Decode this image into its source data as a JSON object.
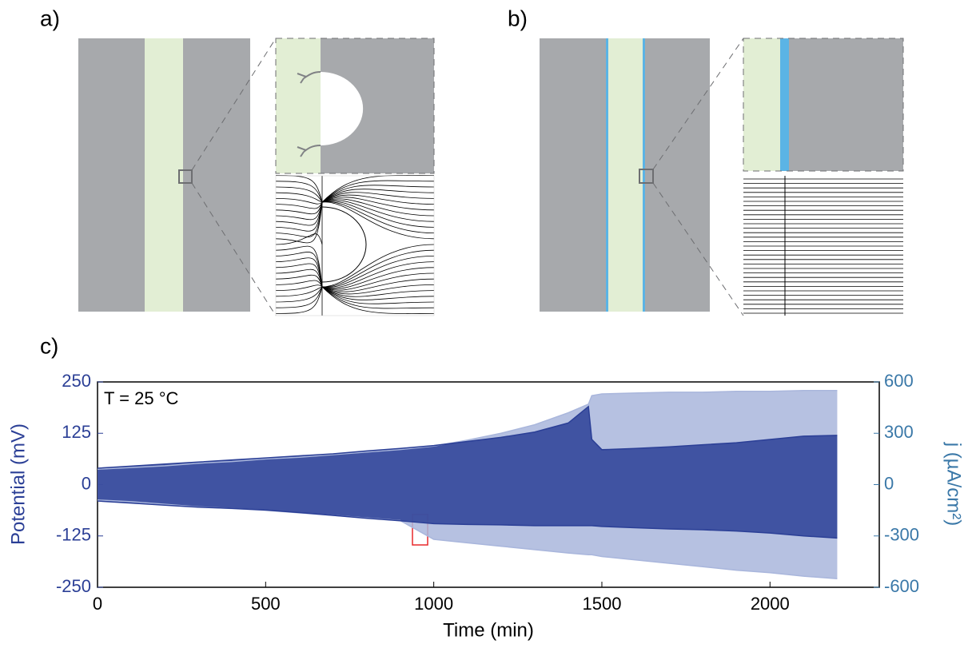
{
  "panels": {
    "a": "a)",
    "b": "b)",
    "c": "c)"
  },
  "chart_data": {
    "type": "band-line",
    "x_label": "Time (min)",
    "y_label": "Potential (mV)",
    "y2_label": "j (µA/cm²)",
    "annotation": "T = 25 °C",
    "xlim": [
      0,
      2325
    ],
    "xticks": [
      0,
      500,
      1000,
      1500,
      2000
    ],
    "ylim": [
      -250,
      250
    ],
    "yticks": [
      250,
      125,
      0,
      -125,
      -250
    ],
    "y2lim": [
      -600,
      600
    ],
    "y2ticks": [
      600,
      300,
      0,
      -300,
      -600
    ],
    "x": [
      0,
      100,
      200,
      300,
      400,
      500,
      600,
      700,
      800,
      900,
      1000,
      1100,
      1200,
      1300,
      1400,
      1460,
      1470,
      1500,
      1600,
      1700,
      1800,
      1900,
      2000,
      2100,
      2200
    ],
    "series": [
      {
        "color": "#a9b6dc",
        "axis": "y2",
        "values": [
          90,
          100,
          110,
          125,
          135,
          150,
          160,
          175,
          190,
          205,
          225,
          260,
          300,
          350,
          420,
          470,
          520,
          530,
          535,
          540,
          540,
          545,
          545,
          550,
          550
        ]
      },
      {
        "color": "#a9b6dc",
        "axis": "y2",
        "values": [
          -90,
          -100,
          -115,
          -130,
          -140,
          -150,
          -165,
          -180,
          -195,
          -210,
          -320,
          -340,
          -360,
          -380,
          -400,
          -410,
          -410,
          -420,
          -440,
          -460,
          -480,
          -500,
          -515,
          -535,
          -550
        ]
      },
      {
        "color": "#2b3f96",
        "values": [
          40,
          45,
          50,
          55,
          60,
          65,
          70,
          75,
          82,
          88,
          95,
          105,
          115,
          128,
          150,
          190,
          110,
          85,
          88,
          92,
          97,
          102,
          110,
          118,
          120
        ]
      },
      {
        "color": "#2b3f96",
        "values": [
          -40,
          -45,
          -50,
          -55,
          -58,
          -62,
          -68,
          -75,
          -82,
          -88,
          -95,
          -97,
          -98,
          -100,
          -100,
          -100,
          -100,
          -102,
          -105,
          -108,
          -110,
          -113,
          -118,
          -125,
          -130
        ]
      }
    ]
  }
}
